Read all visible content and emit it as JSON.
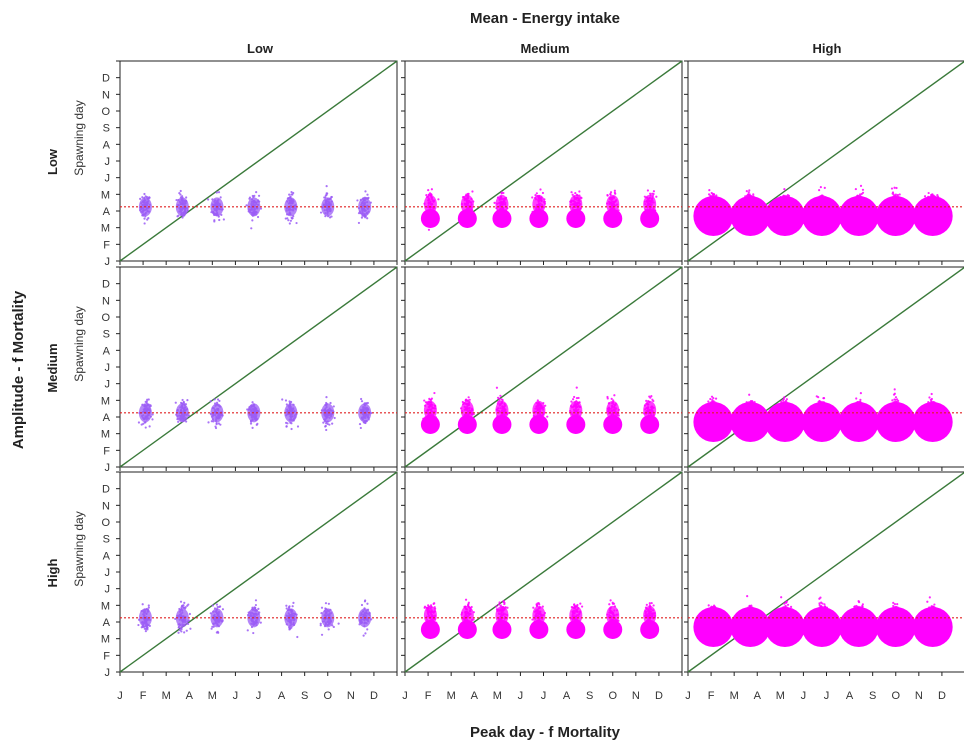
{
  "chart_data": {
    "type": "scatter",
    "title": "Mean - Energy intake",
    "column_labels": [
      "Low",
      "Medium",
      "High"
    ],
    "row_labels": [
      "Low",
      "Medium",
      "High"
    ],
    "row_axis_title": "Amplitude - f Mortality",
    "xlabel": "Peak day - f Mortality",
    "ylabel": "Spawning day",
    "x_tick_labels": [
      "J",
      "F",
      "M",
      "A",
      "M",
      "J",
      "J",
      "A",
      "S",
      "O",
      "N",
      "D"
    ],
    "y_tick_labels": [
      "J",
      "F",
      "M",
      "A",
      "M",
      "J",
      "J",
      "A",
      "S",
      "O",
      "N",
      "D"
    ],
    "xlim": [
      0,
      12
    ],
    "ylim": [
      0,
      12
    ],
    "grid": false,
    "peak_days_month": [
      1.1,
      2.7,
      4.2,
      5.8,
      7.4,
      9.0,
      10.6
    ],
    "reference_line": {
      "type": "identity",
      "color": "#3a7a3a"
    },
    "horizontal_reference": {
      "y_month": 3.25,
      "color": "#e02020",
      "style": "dotted"
    },
    "colors": {
      "purple": "#9b5cf6",
      "magenta": "#ff00ff",
      "line": "#3a7a3a",
      "ref": "#e02020"
    },
    "panels": [
      {
        "row": "Low",
        "col": "Low",
        "cloud_color": "purple",
        "cloud_center_month": 3.25,
        "bubble_month": null,
        "bubble_size": 0
      },
      {
        "row": "Low",
        "col": "Medium",
        "cloud_color": "magenta",
        "cloud_center_month": 3.4,
        "bubble_month": 2.55,
        "bubble_size": 1
      },
      {
        "row": "Low",
        "col": "High",
        "cloud_color": "magenta",
        "cloud_center_month": 3.4,
        "bubble_month": 2.7,
        "bubble_size": 3
      },
      {
        "row": "Medium",
        "col": "Low",
        "cloud_color": "purple",
        "cloud_center_month": 3.25,
        "bubble_month": null,
        "bubble_size": 0
      },
      {
        "row": "Medium",
        "col": "Medium",
        "cloud_color": "magenta",
        "cloud_center_month": 3.4,
        "bubble_month": 2.55,
        "bubble_size": 1
      },
      {
        "row": "Medium",
        "col": "High",
        "cloud_color": "magenta",
        "cloud_center_month": 3.4,
        "bubble_month": 2.7,
        "bubble_size": 3
      },
      {
        "row": "High",
        "col": "Low",
        "cloud_color": "purple",
        "cloud_center_month": 3.25,
        "bubble_month": null,
        "bubble_size": 0
      },
      {
        "row": "High",
        "col": "Medium",
        "cloud_color": "magenta",
        "cloud_center_month": 3.4,
        "bubble_month": 2.55,
        "bubble_size": 1
      },
      {
        "row": "High",
        "col": "High",
        "cloud_color": "magenta",
        "cloud_center_month": 3.4,
        "bubble_month": 2.7,
        "bubble_size": 3
      }
    ]
  }
}
